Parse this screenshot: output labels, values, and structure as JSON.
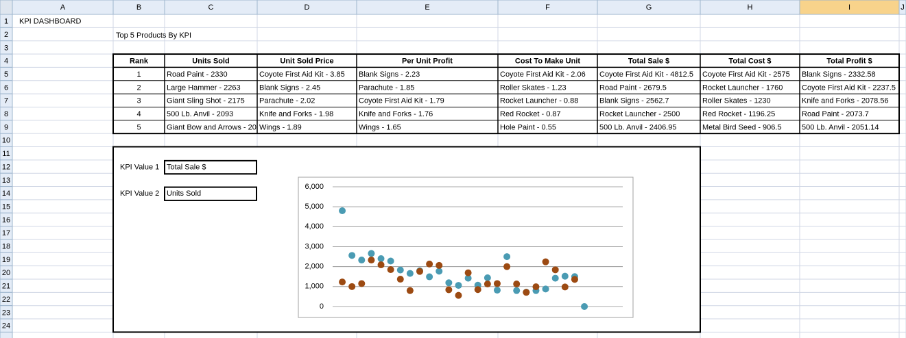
{
  "column_headers": [
    "A",
    "B",
    "C",
    "D",
    "E",
    "F",
    "G",
    "H",
    "I",
    "J"
  ],
  "row_headers": [
    1,
    2,
    3,
    4,
    5,
    6,
    7,
    8,
    9,
    10,
    11,
    12,
    13,
    14,
    15,
    16,
    17,
    18,
    19,
    20,
    21,
    22,
    23,
    24
  ],
  "dashboard_title": "KPI DASHBOARD",
  "table_title": "Top 5 Products By KPI",
  "table": {
    "header": [
      "Rank",
      "Units Sold",
      "Unit Sold Price",
      "Per Unit Profit",
      "Cost To Make Unit",
      "Total Sale $",
      "Total Cost $",
      "Total Profit $"
    ],
    "rows": [
      [
        "1",
        "Road Paint - 2330",
        "Coyote First Aid Kit - 3.85",
        "Blank Signs - 2.23",
        "Coyote First Aid Kit - 2.06",
        "Coyote First Aid Kit - 4812.5",
        "Coyote First Aid Kit - 2575",
        "Blank Signs - 2332.58"
      ],
      [
        "2",
        "Large Hammer - 2263",
        "Blank Signs - 2.45",
        "Parachute - 1.85",
        "Roller Skates - 1.23",
        "Road Paint - 2679.5",
        "Rocket Launcher - 1760",
        "Coyote First Aid Kit - 2237.5"
      ],
      [
        "3",
        "Giant Sling Shot - 2175",
        "Parachute - 2.02",
        "Coyote First Aid Kit - 1.79",
        "Rocket Launcher - 0.88",
        "Blank Signs - 2562.7",
        "Roller Skates - 1230",
        "Knife and Forks - 2078.56"
      ],
      [
        "4",
        "500 Lb. Anvil - 2093",
        "Knife and Forks - 1.98",
        "Knife and Forks - 1.76",
        "Red Rocket - 0.87",
        "Rocket Launcher - 2500",
        "Red Rocket - 1196.25",
        "Road Paint - 2073.7"
      ],
      [
        "5",
        "Giant Bow and Arrows - 20",
        "Wings - 1.89",
        "Wings - 1.65",
        "Hole Paint - 0.55",
        "500 Lb. Anvil - 2406.95",
        "Metal Bird Seed - 906.5",
        "500 Lb. Anvil - 2051.14"
      ]
    ]
  },
  "kpi": [
    {
      "label": "KPI Value 1",
      "value": "Total Sale $"
    },
    {
      "label": "KPI Value 2",
      "value": "Units Sold"
    }
  ],
  "chart_data": {
    "type": "scatter",
    "categories": [
      null,
      null,
      null,
      null,
      null,
      null,
      null,
      null,
      null,
      null,
      null,
      null,
      null,
      null,
      null,
      null,
      null,
      null,
      null,
      null,
      null,
      null,
      null,
      null,
      null,
      null
    ],
    "series": [
      {
        "color": "#4a9bb3",
        "values": [
          4800,
          2560,
          2330,
          2660,
          2400,
          2280,
          1830,
          1660,
          1790,
          1490,
          1770,
          1190,
          1060,
          1420,
          1070,
          1440,
          820,
          2500,
          800,
          720,
          800,
          880,
          1420,
          1520,
          1500,
          0
        ]
      },
      {
        "color": "#9c4a12",
        "values": [
          1230,
          1000,
          1150,
          2330,
          2090,
          1850,
          1370,
          800,
          1760,
          2130,
          2060,
          840,
          560,
          1690,
          850,
          1130,
          1150,
          2000,
          1130,
          710,
          990,
          2240,
          1840,
          980,
          1360,
          null
        ]
      }
    ],
    "ylim": [
      0,
      6000
    ],
    "yticks": [
      0,
      {
        "value": 1000,
        "label": "1,000"
      },
      {
        "value": 2000,
        "label": "2,000"
      },
      {
        "value": 3000,
        "label": "3,000"
      },
      {
        "value": 4000,
        "label": "4,000"
      },
      {
        "value": 5000,
        "label": "5,000"
      },
      {
        "value": 6000,
        "label": "6,000"
      }
    ],
    "grid": true
  }
}
